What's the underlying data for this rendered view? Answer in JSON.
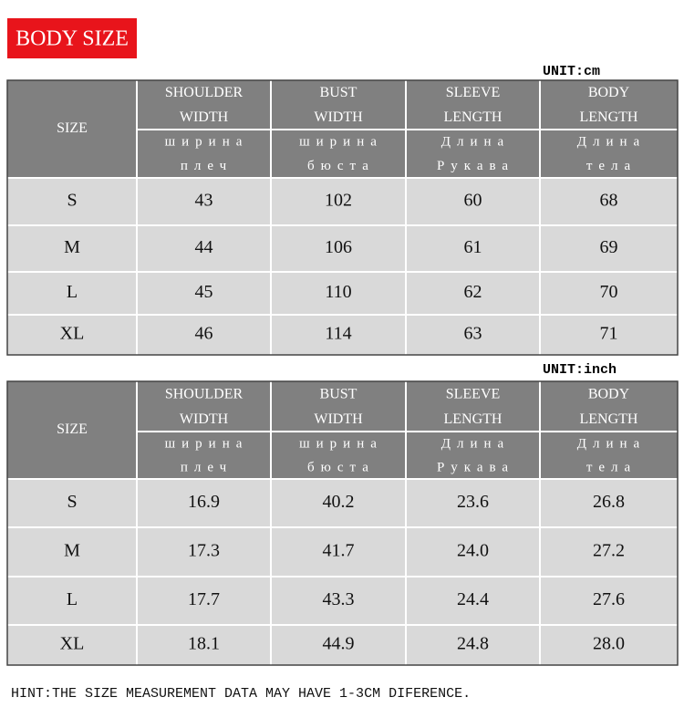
{
  "header": {
    "title": "BODY SIZE"
  },
  "tables": [
    {
      "unit": "UNIT:cm",
      "size_label": "SIZE",
      "columns": [
        {
          "en": [
            "SHOULDER",
            "WIDTH"
          ],
          "ru": [
            "ширина",
            "плеч"
          ]
        },
        {
          "en": [
            "BUST",
            "WIDTH"
          ],
          "ru": [
            "ширина",
            "бюста"
          ]
        },
        {
          "en": [
            "SLEEVE",
            "LENGTH"
          ],
          "ru": [
            "Длина",
            "Рукава"
          ]
        },
        {
          "en": [
            "BODY",
            "LENGTH"
          ],
          "ru": [
            "Длина",
            "тела"
          ]
        }
      ],
      "rows": [
        [
          "S",
          "43",
          "102",
          "60",
          "68"
        ],
        [
          "M",
          "44",
          "106",
          "61",
          "69"
        ],
        [
          "L",
          "45",
          "110",
          "62",
          "70"
        ],
        [
          "XL",
          "46",
          "114",
          "63",
          "71"
        ]
      ]
    },
    {
      "unit": "UNIT:inch",
      "size_label": "SIZE",
      "columns": [
        {
          "en": [
            "SHOULDER",
            "WIDTH"
          ],
          "ru": [
            "ширина",
            "плеч"
          ]
        },
        {
          "en": [
            "BUST",
            "WIDTH"
          ],
          "ru": [
            "ширина",
            "бюста"
          ]
        },
        {
          "en": [
            "SLEEVE",
            "LENGTH"
          ],
          "ru": [
            "Длина",
            "Рукава"
          ]
        },
        {
          "en": [
            "BODY",
            "LENGTH"
          ],
          "ru": [
            "Длина",
            "тела"
          ]
        }
      ],
      "rows": [
        [
          "S",
          "16.9",
          "40.2",
          "23.6",
          "26.8"
        ],
        [
          "M",
          "17.3",
          "41.7",
          "24.0",
          "27.2"
        ],
        [
          "L",
          "17.7",
          "43.3",
          "24.4",
          "27.6"
        ],
        [
          "XL",
          "18.1",
          "44.9",
          "24.8",
          "28.0"
        ]
      ]
    }
  ],
  "hint": "HINT:THE SIZE MEASUREMENT DATA MAY HAVE 1-3CM DIFERENCE."
}
